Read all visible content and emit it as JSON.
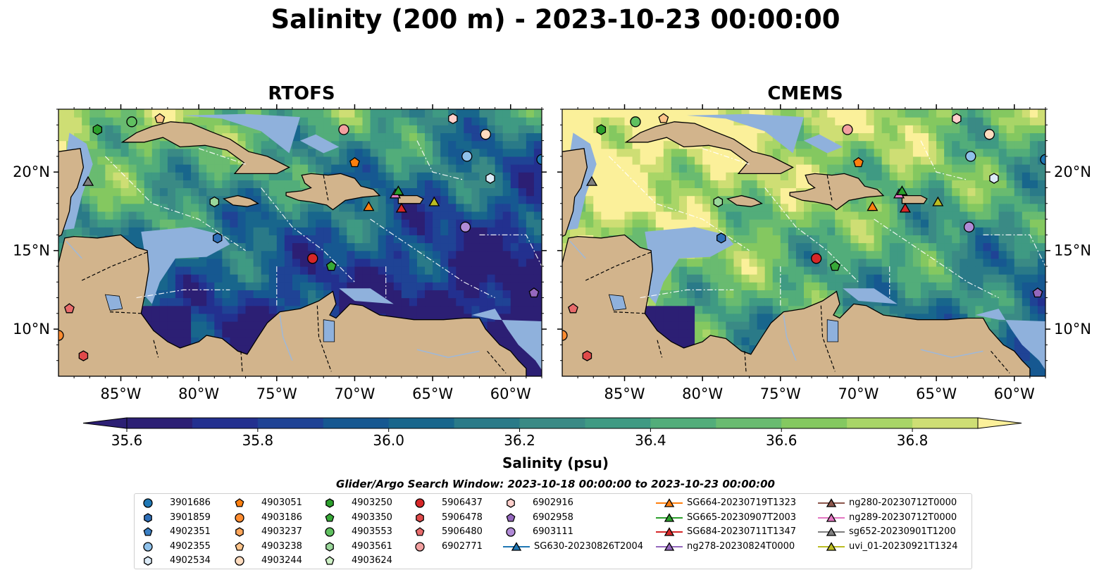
{
  "title": "Salinity (200 m) - 2023-10-23 00:00:00",
  "panels": [
    {
      "title": "RTOFS",
      "mode": "rtofs"
    },
    {
      "title": "CMEMS",
      "mode": "cmems"
    }
  ],
  "map": {
    "lon_range": [
      -89.0,
      -58.0
    ],
    "lat_range": [
      7.0,
      24.0
    ],
    "lon_ticks": [
      {
        "value": -85,
        "label": "85°W"
      },
      {
        "value": -80,
        "label": "80°W"
      },
      {
        "value": -75,
        "label": "75°W"
      },
      {
        "value": -70,
        "label": "70°W"
      },
      {
        "value": -65,
        "label": "65°W"
      },
      {
        "value": -60,
        "label": "60°W"
      }
    ],
    "lat_ticks": [
      {
        "value": 10,
        "label": "10°N"
      },
      {
        "value": 15,
        "label": "15°N"
      },
      {
        "value": 20,
        "label": "20°N"
      }
    ],
    "colors": {
      "land": "#d2b48c",
      "shelf": "#8fb1dc",
      "ocean_deep": "#2b1a6a",
      "coast": "#000000"
    }
  },
  "colorbar": {
    "label": "Salinity (psu)",
    "ticks": [
      "35.6",
      "35.8",
      "36.0",
      "36.2",
      "36.4",
      "36.6",
      "36.8"
    ],
    "tick_values": [
      35.6,
      35.8,
      36.0,
      36.2,
      36.4,
      36.6,
      36.8
    ],
    "levels": [
      35.6,
      35.7,
      35.8,
      35.9,
      36.0,
      36.1,
      36.2,
      36.3,
      36.4,
      36.5,
      36.6,
      36.7,
      36.8,
      36.9
    ],
    "colors": [
      "#2c1f74",
      "#23308f",
      "#1f4395",
      "#165891",
      "#18668c",
      "#2a7a88",
      "#3a8a85",
      "#3f9a83",
      "#52ad7a",
      "#69bb70",
      "#84c860",
      "#a8d567",
      "#cede74",
      "#fbf09a"
    ],
    "extend": "both"
  },
  "search_window": "Glider/Argo Search Window: 2023-10-18 00:00:00 to 2023-10-23 00:00:00",
  "legend": {
    "columns": [
      [
        {
          "label": "3901686",
          "marker": "circle",
          "color": "#1f77b4"
        },
        {
          "label": "3901859",
          "marker": "hexagon",
          "color": "#2f6fb8"
        },
        {
          "label": "4902351",
          "marker": "pentagon",
          "color": "#3a7fc4"
        },
        {
          "label": "4902355",
          "marker": "circle",
          "color": "#8fc1ea"
        },
        {
          "label": "4902534",
          "marker": "hexagon",
          "color": "#dcebf8"
        }
      ],
      [
        {
          "label": "4903051",
          "marker": "pentagon",
          "color": "#ff7f0e"
        },
        {
          "label": "4903186",
          "marker": "circle",
          "color": "#ff8c30"
        },
        {
          "label": "4903237",
          "marker": "hexagon",
          "color": "#ffa65a"
        },
        {
          "label": "4903238",
          "marker": "pentagon",
          "color": "#ffc48a"
        },
        {
          "label": "4903244",
          "marker": "circle",
          "color": "#ffdcbf"
        }
      ],
      [
        {
          "label": "4903250",
          "marker": "hexagon",
          "color": "#2ca02c"
        },
        {
          "label": "4903350",
          "marker": "pentagon",
          "color": "#37a837"
        },
        {
          "label": "4903553",
          "marker": "circle",
          "color": "#60c060"
        },
        {
          "label": "4903561",
          "marker": "hexagon",
          "color": "#9ad79a"
        },
        {
          "label": "4903624",
          "marker": "pentagon",
          "color": "#cdf0c5"
        }
      ],
      [
        {
          "label": "5906437",
          "marker": "circle",
          "color": "#d62728"
        },
        {
          "label": "5906478",
          "marker": "hexagon",
          "color": "#e04a4a"
        },
        {
          "label": "5906480",
          "marker": "pentagon",
          "color": "#e86b6b"
        },
        {
          "label": "6902771",
          "marker": "circle",
          "color": "#f2a0a0"
        }
      ],
      [
        {
          "label": "6902916",
          "marker": "hexagon",
          "color": "#ffd0cc"
        },
        {
          "label": "6902958",
          "marker": "pentagon",
          "color": "#9467bd"
        },
        {
          "label": "6903111",
          "marker": "circle",
          "color": "#b08ad6"
        },
        {
          "label": "SG630-20230826T2004",
          "marker": "triangle-line",
          "color": "#1f77b4"
        }
      ],
      [
        {
          "label": "SG664-20230719T1323",
          "marker": "triangle-line",
          "color": "#ff7f0e"
        },
        {
          "label": "SG665-20230907T2003",
          "marker": "triangle-line",
          "color": "#2ca02c"
        },
        {
          "label": "SG684-20230711T1347",
          "marker": "triangle-line",
          "color": "#d62728"
        },
        {
          "label": "ng278-20230824T0000",
          "marker": "triangle-line",
          "color": "#9467bd"
        }
      ],
      [
        {
          "label": "ng280-20230712T0000",
          "marker": "triangle-line",
          "color": "#8c564b"
        },
        {
          "label": "ng289-20230712T0000",
          "marker": "triangle-line",
          "color": "#e377c2"
        },
        {
          "label": "sg652-20230901T1200",
          "marker": "triangle-line",
          "color": "#7f7f7f"
        },
        {
          "label": "uvi_01-20230921T1324",
          "marker": "triangle-line",
          "color": "#bcbd22"
        }
      ]
    ]
  },
  "map_points": [
    {
      "id": "3901686",
      "lon": -58.0,
      "lat": 20.8
    },
    {
      "id": "4902355",
      "lon": -62.8,
      "lat": 21.0
    },
    {
      "id": "4902534",
      "lon": -61.3,
      "lat": 19.6
    },
    {
      "id": "3901859",
      "lon": -78.8,
      "lat": 15.8
    },
    {
      "id": "4903051",
      "lon": -70.0,
      "lat": 20.6
    },
    {
      "id": "4903186",
      "lon": -89.0,
      "lat": 9.6
    },
    {
      "id": "4903238",
      "lon": -82.5,
      "lat": 23.4
    },
    {
      "id": "4903244",
      "lon": -61.6,
      "lat": 22.4
    },
    {
      "id": "4903250",
      "lon": -86.5,
      "lat": 22.7
    },
    {
      "id": "4903553",
      "lon": -84.3,
      "lat": 23.2
    },
    {
      "id": "4903561",
      "lon": -79.0,
      "lat": 18.1
    },
    {
      "id": "4903350",
      "lon": -71.5,
      "lat": 14.0
    },
    {
      "id": "5906437",
      "lon": -72.7,
      "lat": 14.5
    },
    {
      "id": "5906478",
      "lon": -87.4,
      "lat": 8.3
    },
    {
      "id": "5906480",
      "lon": -88.3,
      "lat": 11.3
    },
    {
      "id": "6902771",
      "lon": -70.7,
      "lat": 22.7
    },
    {
      "id": "6902916",
      "lon": -63.7,
      "lat": 23.4
    },
    {
      "id": "6902958",
      "lon": -58.5,
      "lat": 12.3
    },
    {
      "id": "6903111",
      "lon": -62.9,
      "lat": 16.5
    },
    {
      "id": "SG664-20230719T1323",
      "lon": -69.1,
      "lat": 17.8
    },
    {
      "id": "SG684-20230711T1347",
      "lon": -67.0,
      "lat": 17.7
    },
    {
      "id": "ng289-20230712T0000",
      "lon": -67.4,
      "lat": 18.6
    },
    {
      "id": "SG665-20230907T2003",
      "lon": -67.2,
      "lat": 18.8
    },
    {
      "id": "uvi_01-20230921T1324",
      "lon": -64.9,
      "lat": 18.1
    },
    {
      "id": "sg652-20230901T1200",
      "lon": -87.1,
      "lat": 19.4
    }
  ]
}
